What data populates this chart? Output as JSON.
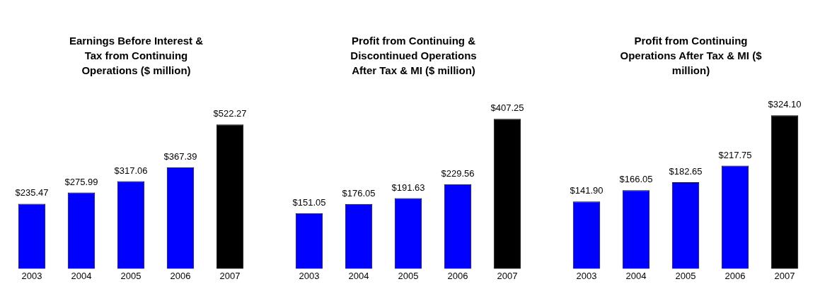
{
  "chart_data": [
    {
      "type": "bar",
      "title": "Earnings Before Interest & Tax from Continuing Operations ($ million)",
      "categories": [
        "2003",
        "2004",
        "2005",
        "2006",
        "2007"
      ],
      "values": [
        235.47,
        275.99,
        317.06,
        367.39,
        522.27
      ],
      "colors": [
        "#0000ff",
        "#0000ff",
        "#0000ff",
        "#0000ff",
        "#000000"
      ],
      "value_labels": [
        "$235.47",
        "$275.99",
        "$317.06",
        "$367.39",
        "$522.27"
      ],
      "grid": false,
      "legend": false
    },
    {
      "type": "bar",
      "title": "Profit from Continuing & Discontinued Operations After Tax & MI ($ million)",
      "categories": [
        "2003",
        "2004",
        "2005",
        "2006",
        "2007"
      ],
      "values": [
        151.05,
        176.05,
        191.63,
        229.56,
        407.25
      ],
      "colors": [
        "#0000ff",
        "#0000ff",
        "#0000ff",
        "#0000ff",
        "#000000"
      ],
      "value_labels": [
        "$151.05",
        "$176.05",
        "$191.63",
        "$229.56",
        "$407.25"
      ],
      "grid": false,
      "legend": false
    },
    {
      "type": "bar",
      "title": "Profit from Continuing Operations After Tax & MI ($ million)",
      "categories": [
        "2003",
        "2004",
        "2005",
        "2006",
        "2007"
      ],
      "values": [
        141.9,
        166.05,
        182.65,
        217.75,
        324.1
      ],
      "colors": [
        "#0000ff",
        "#0000ff",
        "#0000ff",
        "#0000ff",
        "#000000"
      ],
      "value_labels": [
        "$141.90",
        "$166.05",
        "$182.65",
        "$217.75",
        "$324.10"
      ],
      "grid": false,
      "legend": false
    }
  ]
}
